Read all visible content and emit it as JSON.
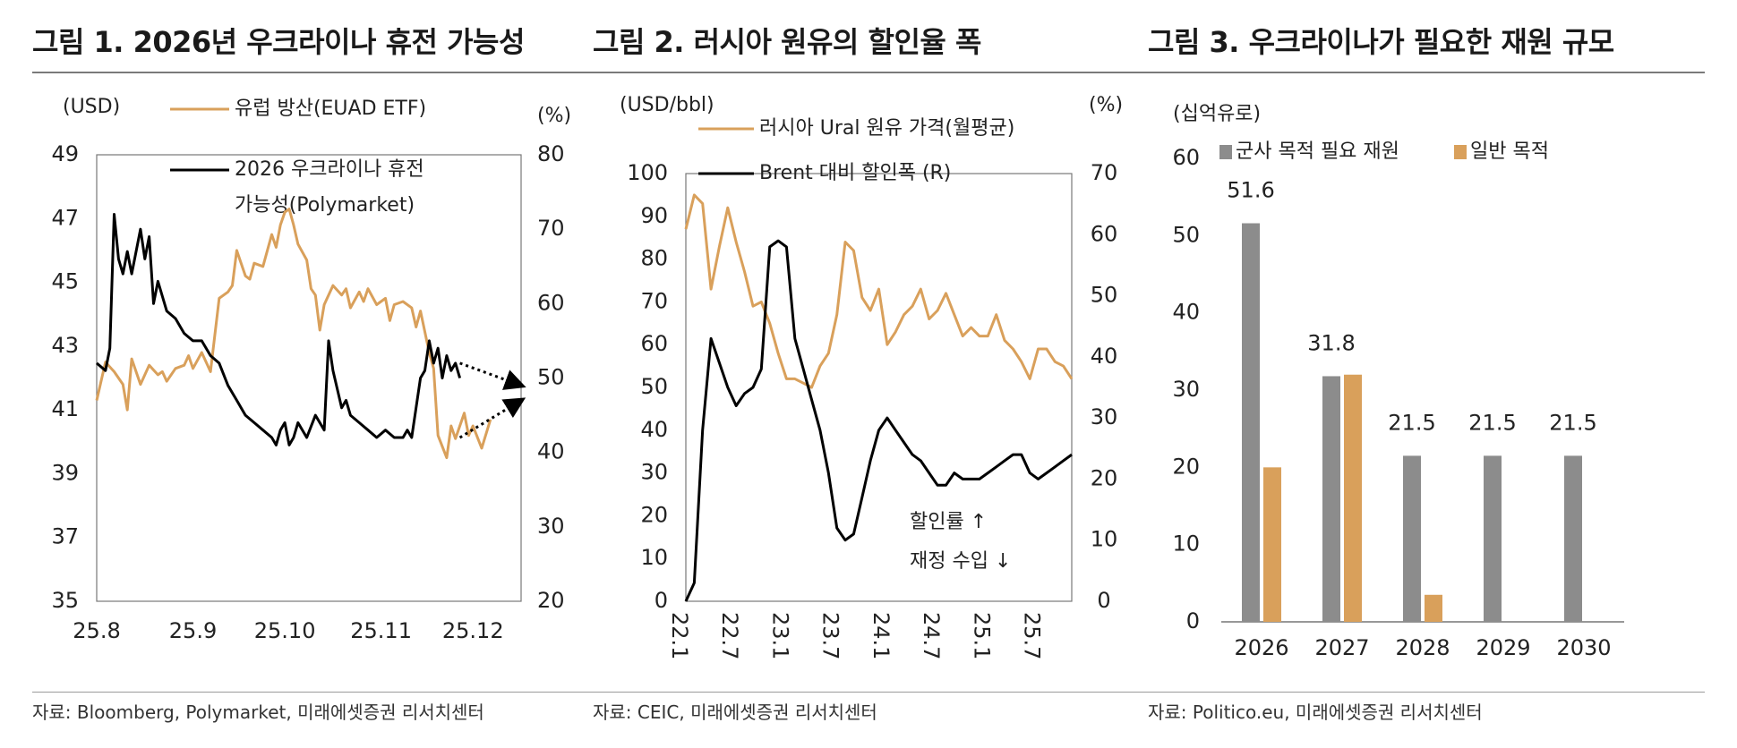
{
  "colors": {
    "orange": "#D9A05B",
    "black": "#000000",
    "gray": "#8C8C8C",
    "frame": "#777777"
  },
  "figures": [
    {
      "title": "그림 1. 2026년 우크라이나 휴전 가능성",
      "source": "자료: Bloomberg, Polymarket, 미래에셋증권 리서치센터"
    },
    {
      "title": "그림 2. 러시아 원유의 할인율 폭",
      "source": "자료: CEIC, 미래에셋증권 리서치센터"
    },
    {
      "title": "그림 3. 우크라이나가 필요한 재원 규모",
      "source": "자료: Politico.eu, 미래에셋증권 리서치센터"
    }
  ],
  "chart_data": [
    {
      "type": "line",
      "left_unit": "(USD)",
      "right_unit": "(%)",
      "ylim_left": [
        35,
        49
      ],
      "yticks_left": [
        "35",
        "37",
        "39",
        "41",
        "43",
        "45",
        "47",
        "49"
      ],
      "ylim_right": [
        20,
        80
      ],
      "yticks_right": [
        "20",
        "30",
        "40",
        "50",
        "60",
        "70",
        "80"
      ],
      "xlim": [
        0,
        97
      ],
      "xticks": [
        {
          "label": "25.8",
          "x": 0
        },
        {
          "label": "25.9",
          "x": 22
        },
        {
          "label": "25.10",
          "x": 43
        },
        {
          "label": "25.11",
          "x": 65
        },
        {
          "label": "25.12",
          "x": 86
        }
      ],
      "series": [
        {
          "name": "유럽 방산(EUAD ETF)",
          "axis": "left",
          "color": "#D9A05B",
          "x": [
            0,
            2,
            4,
            6,
            7,
            8,
            10,
            12,
            14,
            15,
            16,
            18,
            20,
            21,
            22,
            24,
            26,
            28,
            30,
            31,
            32,
            34,
            35,
            36,
            38,
            40,
            41,
            42,
            43,
            44,
            45,
            46,
            48,
            49,
            50,
            51,
            52,
            54,
            56,
            57,
            58,
            60,
            61,
            62,
            64,
            66,
            67,
            68,
            70,
            72,
            73,
            74,
            76,
            77,
            78,
            80,
            81,
            82,
            84,
            85,
            86,
            88,
            90
          ],
          "y": [
            41.3,
            42.5,
            42.2,
            41.8,
            41,
            42.6,
            41.8,
            42.4,
            42.1,
            42.2,
            41.9,
            42.3,
            42.4,
            42.7,
            42.3,
            42.8,
            42.2,
            44.5,
            44.7,
            44.9,
            46,
            45.2,
            45.1,
            45.6,
            45.5,
            46.5,
            46.1,
            46.8,
            47.2,
            47.3,
            46.8,
            46.2,
            45.7,
            44.8,
            44.6,
            43.5,
            44.3,
            44.9,
            44.6,
            44.8,
            44.2,
            44.7,
            44.4,
            44.8,
            44.3,
            44.5,
            43.8,
            44.3,
            44.4,
            44.2,
            43.6,
            44.1,
            42.8,
            42.3,
            40.2,
            39.5,
            40.5,
            40.1,
            40.9,
            40.2,
            40.5,
            39.8,
            40.7
          ]
        },
        {
          "name": "2026 우크라이나 휴전 가능성(Polymarket)",
          "axis": "right",
          "color": "#000000",
          "x": [
            0,
            2,
            3,
            4,
            5,
            6,
            7,
            8,
            10,
            11,
            12,
            13,
            14,
            15,
            16,
            18,
            19,
            20,
            22,
            24,
            26,
            28,
            30,
            32,
            34,
            36,
            38,
            40,
            41,
            42,
            43,
            44,
            45,
            46,
            48,
            50,
            52,
            53,
            54,
            56,
            57,
            58,
            60,
            62,
            64,
            66,
            68,
            70,
            71,
            72,
            73,
            74,
            75,
            76,
            77,
            78,
            79,
            80,
            81,
            82,
            83
          ],
          "y": [
            52,
            51,
            54,
            72,
            66,
            64,
            67,
            64,
            70,
            66,
            69,
            60,
            63,
            61,
            59,
            58,
            57,
            56,
            55,
            55,
            53,
            52,
            49,
            47,
            45,
            44,
            43,
            42,
            41,
            43,
            44,
            41,
            42,
            44,
            42,
            45,
            43,
            55,
            51,
            46,
            47,
            45,
            44,
            43,
            42,
            43,
            42,
            42,
            43,
            42,
            46,
            50,
            51,
            55,
            52,
            54,
            50,
            53,
            51,
            52,
            50
          ]
        }
      ],
      "arrows": [
        {
          "from": [
            83,
            52
          ],
          "to": [
            97,
            49
          ]
        },
        {
          "from": [
            83,
            42
          ],
          "to": [
            97,
            47
          ]
        }
      ]
    },
    {
      "type": "line",
      "left_unit": "(USD/bbl)",
      "right_unit": "(%)",
      "ylim_left": [
        0,
        100
      ],
      "yticks_left": [
        "0",
        "10",
        "20",
        "30",
        "40",
        "50",
        "60",
        "70",
        "80",
        "90",
        "100"
      ],
      "ylim_right": [
        0,
        70
      ],
      "yticks_right": [
        "0",
        "10",
        "20",
        "30",
        "40",
        "50",
        "60",
        "70"
      ],
      "xlim": [
        0,
        46
      ],
      "xticks": [
        {
          "label": "22.1",
          "x": 0
        },
        {
          "label": "22.7",
          "x": 6
        },
        {
          "label": "23.1",
          "x": 12
        },
        {
          "label": "23.7",
          "x": 18
        },
        {
          "label": "24.1",
          "x": 24
        },
        {
          "label": "24.7",
          "x": 30
        },
        {
          "label": "25.1",
          "x": 36
        },
        {
          "label": "25.7",
          "x": 42
        }
      ],
      "series": [
        {
          "name": "러시아 Ural 원유 가격(월평균)",
          "axis": "left",
          "color": "#D9A05B",
          "x": [
            0,
            1,
            2,
            3,
            4,
            5,
            6,
            7,
            8,
            9,
            10,
            11,
            12,
            13,
            14,
            15,
            16,
            17,
            18,
            19,
            20,
            21,
            22,
            23,
            24,
            25,
            26,
            27,
            28,
            29,
            30,
            31,
            32,
            33,
            34,
            35,
            36,
            37,
            38,
            39,
            40,
            41,
            42,
            43,
            44,
            45,
            46
          ],
          "y": [
            87,
            95,
            93,
            73,
            83,
            92,
            84,
            77,
            69,
            70,
            65,
            58,
            52,
            52,
            51,
            50,
            55,
            58,
            67,
            84,
            82,
            71,
            68,
            73,
            60,
            63,
            67,
            69,
            73,
            66,
            68,
            72,
            67,
            62,
            64,
            62,
            62,
            67,
            61,
            59,
            56,
            52,
            59,
            59,
            56,
            55,
            52
          ]
        },
        {
          "name": "Brent 대비 할인폭 (R)",
          "axis": "right",
          "color": "#000000",
          "x": [
            0,
            1,
            2,
            3,
            4,
            5,
            6,
            7,
            8,
            9,
            10,
            11,
            12,
            13,
            14,
            15,
            16,
            17,
            18,
            19,
            20,
            21,
            22,
            23,
            24,
            25,
            26,
            27,
            28,
            29,
            30,
            31,
            32,
            33,
            34,
            35,
            36,
            37,
            38,
            39,
            40,
            41,
            42,
            43,
            44,
            45,
            46
          ],
          "y": [
            0,
            3,
            28,
            43,
            39,
            35,
            32,
            34,
            35,
            38,
            58,
            59,
            58,
            43,
            38,
            33,
            28,
            21,
            12,
            10,
            11,
            17,
            23,
            28,
            30,
            28,
            26,
            24,
            23,
            21,
            19,
            19,
            21,
            20,
            20,
            20,
            21,
            22,
            23,
            24,
            24,
            21,
            20,
            21,
            22,
            23,
            24
          ]
        }
      ],
      "annotation_lines": [
        "할인률 ↑",
        "재정 수입 ↓"
      ]
    },
    {
      "type": "bar",
      "unit": "(십억유로)",
      "ylim": [
        0,
        60
      ],
      "yticks": [
        "0",
        "10",
        "20",
        "30",
        "40",
        "50",
        "60"
      ],
      "categories": [
        "2026",
        "2027",
        "2028",
        "2029",
        "2030"
      ],
      "series": [
        {
          "name": "군사 목적 필요 재원",
          "color": "#8C8C8C",
          "values": [
            51.6,
            31.8,
            21.5,
            21.5,
            21.5
          ]
        },
        {
          "name": "일반 목적",
          "color": "#D9A05B",
          "values": [
            20,
            32,
            3.5,
            0,
            0
          ]
        }
      ],
      "data_labels": [
        "51.6",
        "31.8",
        "21.5",
        "21.5",
        "21.5"
      ]
    }
  ]
}
